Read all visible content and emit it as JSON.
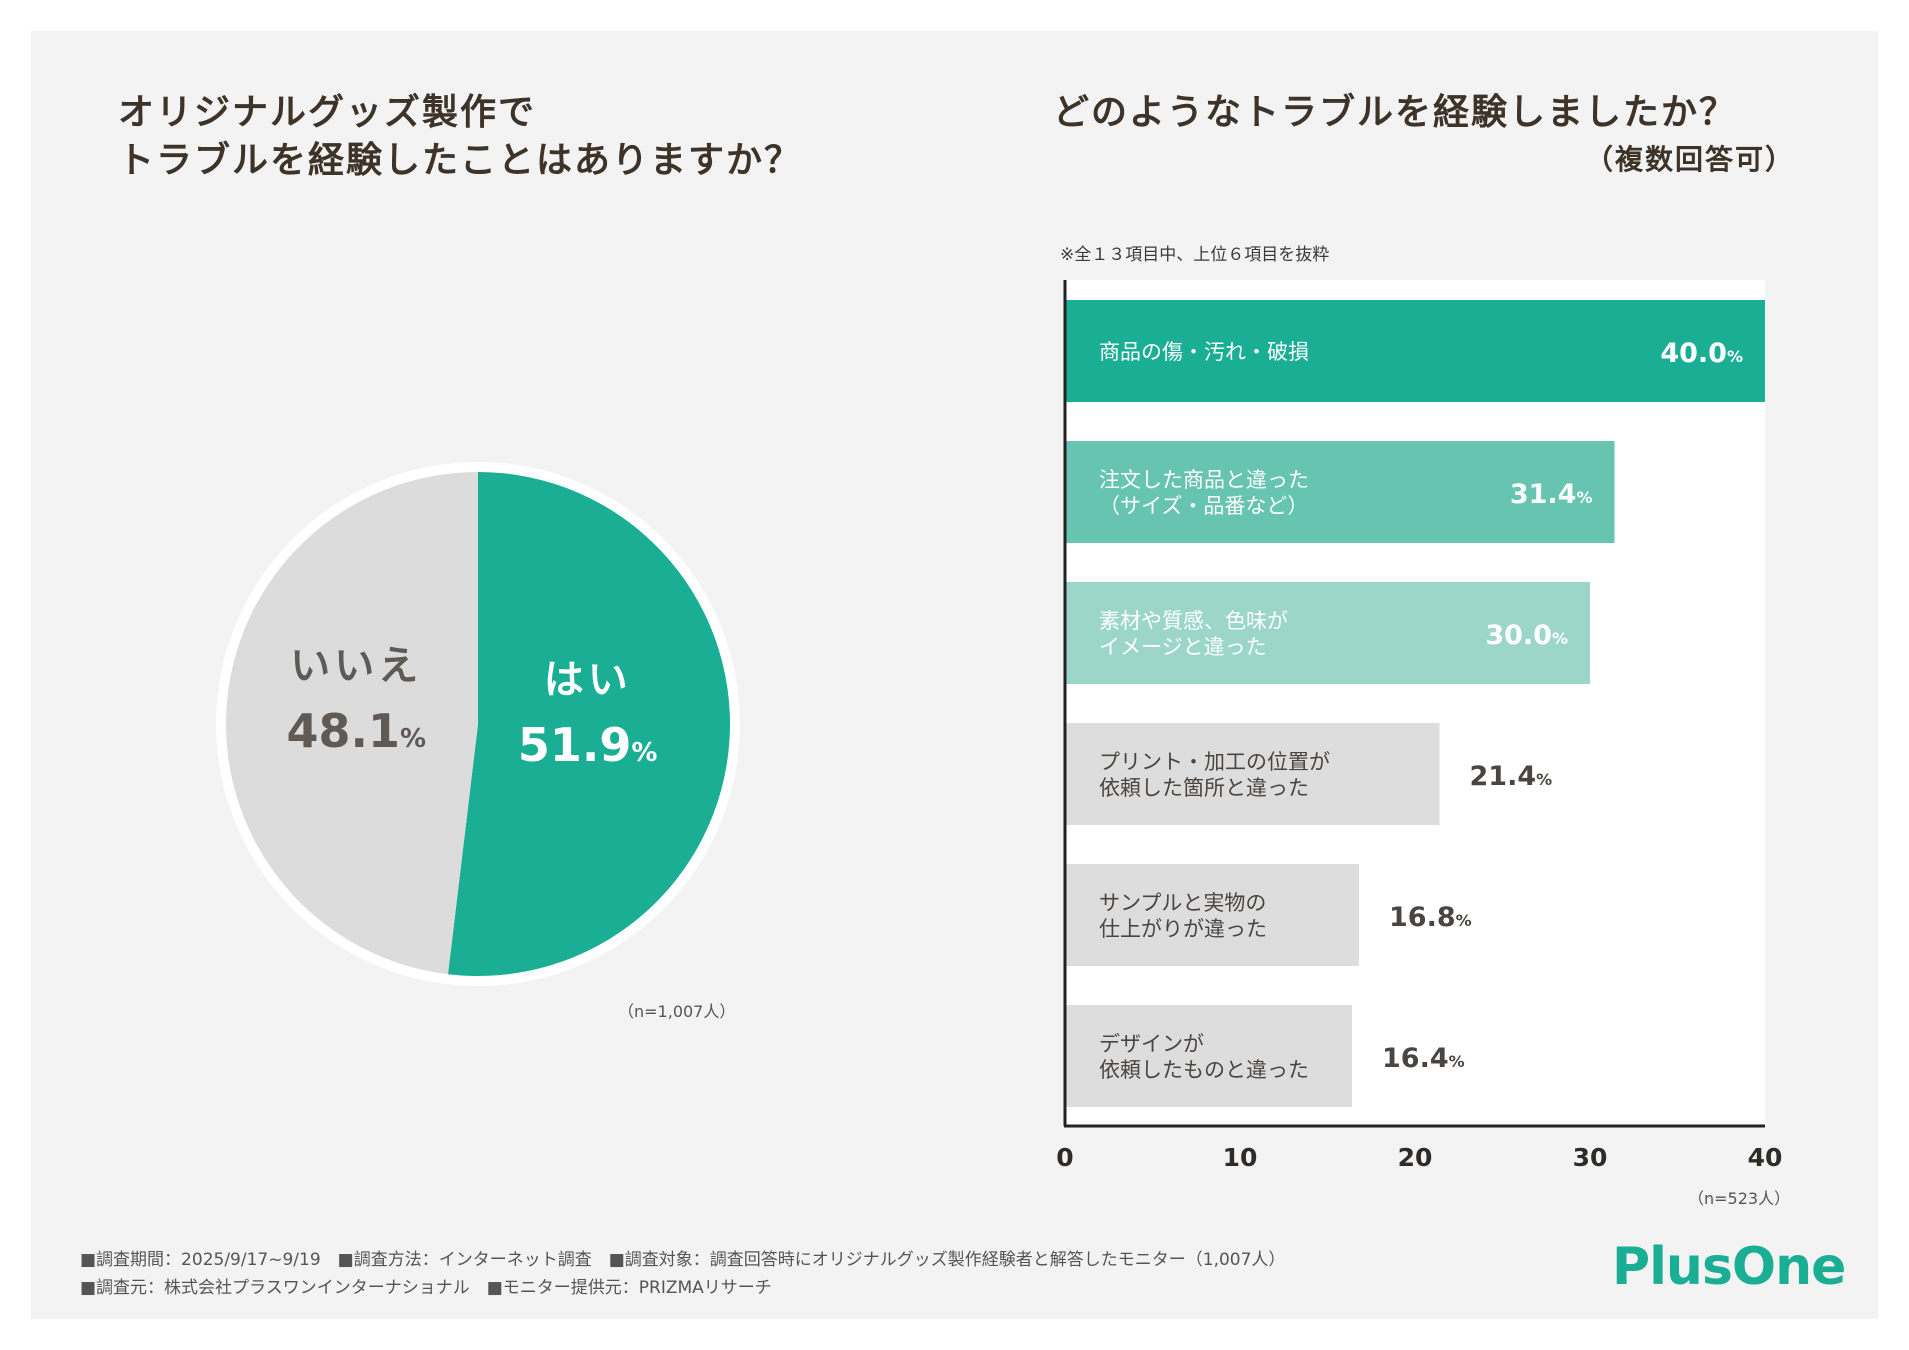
{
  "left": {
    "title_line1": "オリジナルグッズ製作で",
    "title_line2": "トラブルを経験したことはありますか？",
    "n_label": "（n=1,007人）"
  },
  "right": {
    "title": "どのようなトラブルを経験しましたか？",
    "subtitle": "（複数回答可）",
    "note": "※全１３項目中、上位６項目を抜粋",
    "n_label": "（n=523人）"
  },
  "colors": {
    "accent": "#1aae95",
    "bar2": "#66c4b1",
    "bar3": "#9bd6c8",
    "gray": "#dddddd",
    "pie_gray": "#dcdcdc"
  },
  "chart_data": [
    {
      "type": "pie",
      "slices": [
        {
          "label": "はい",
          "value": 51.9,
          "display": "51.9",
          "unit": "%",
          "color": "#1aae95"
        },
        {
          "label": "いいえ",
          "value": 48.1,
          "display": "48.1",
          "unit": "%",
          "color": "#dcdcdc"
        }
      ]
    },
    {
      "type": "bar",
      "orientation": "horizontal",
      "categories": [
        [
          "商品の傷・汚れ・破損"
        ],
        [
          "注文した商品と違った",
          "（サイズ・品番など）"
        ],
        [
          "素材や質感、色味が",
          "イメージと違った"
        ],
        [
          "プリント・加工の位置が",
          "依頼した箇所と違った"
        ],
        [
          "サンプルと実物の",
          "仕上がりが違った"
        ],
        [
          "デザインが",
          "依頼したものと違った"
        ]
      ],
      "values": [
        40.0,
        31.4,
        30.0,
        21.4,
        16.8,
        16.4
      ],
      "value_labels": [
        "40.0",
        "31.4",
        "30.0",
        "21.4",
        "16.8",
        "16.4"
      ],
      "unit": "%",
      "bar_colors": [
        "#1aae95",
        "#66c4b1",
        "#9bd6c8",
        "#dddddd",
        "#dddddd",
        "#dddddd"
      ],
      "xlim": [
        0,
        40
      ],
      "xticks": [
        "0",
        "10",
        "20",
        "30",
        "40"
      ]
    }
  ],
  "footer": {
    "line1": "■調査期間：2025/9/17~9/19　■調査方法：インターネット調査　■調査対象：調査回答時にオリジナルグッズ製作経験者と解答したモニター（1,007人）",
    "line2": "■調査元：株式会社プラスワンインターナショナル　■モニター提供元：PRIZMAリサーチ"
  },
  "logo": "PlusOne"
}
